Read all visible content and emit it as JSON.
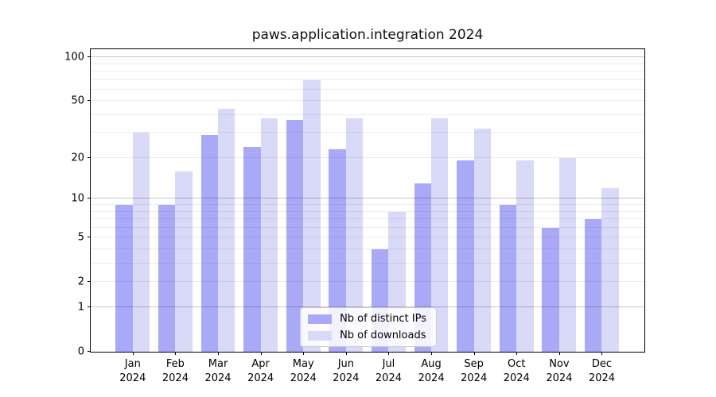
{
  "title": "paws.application.integration 2024",
  "chart_data": {
    "type": "bar",
    "title": "paws.application.integration 2024",
    "yscale": "log1p",
    "categories": [
      "Jan",
      "Feb",
      "Mar",
      "Apr",
      "May",
      "Jun",
      "Jul",
      "Aug",
      "Sep",
      "Oct",
      "Nov",
      "Dec"
    ],
    "year": "2024",
    "series": [
      {
        "name": "Nb of distinct IPs",
        "color": "#a9a9f7",
        "values": [
          9,
          9,
          29,
          24,
          37,
          23,
          4,
          13,
          19,
          9,
          6,
          7
        ]
      },
      {
        "name": "Nb of downloads",
        "color": "#d9d9f8",
        "values": [
          30,
          16,
          44,
          38,
          70,
          38,
          8,
          38,
          32,
          19,
          20,
          12
        ]
      }
    ],
    "xlabel": "",
    "ylabel": "",
    "ylim": [
      0,
      114
    ],
    "yticks": [
      0,
      1,
      2,
      5,
      10,
      20,
      50,
      100
    ],
    "major_gridlines": [
      1,
      10,
      100
    ],
    "minor_gridlines": [
      2,
      3,
      4,
      5,
      6,
      7,
      8,
      9,
      20,
      30,
      40,
      50,
      60,
      70,
      80,
      90
    ],
    "grid": "on",
    "legend_position": "bottom-center"
  }
}
